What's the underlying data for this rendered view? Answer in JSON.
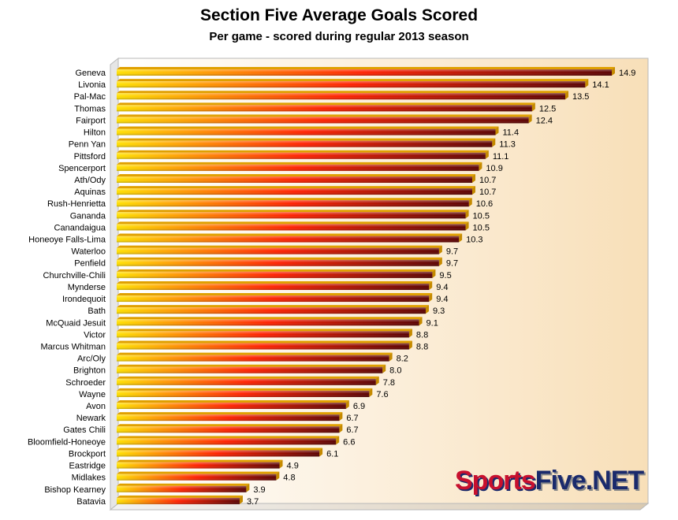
{
  "title": "Section Five Average Goals Scored",
  "subtitle": "Per game - scored during regular 2013 season",
  "logo": {
    "part1": "Sports",
    "part2": "Five.NET"
  },
  "colors": {
    "bar_start": "#ffe000",
    "bar_mid": "#ff2000",
    "bar_end": "#5a0000",
    "plot_bg_start": "#ffffff",
    "plot_bg_end": "#f8dfb8"
  },
  "chart_data": {
    "type": "bar",
    "orientation": "horizontal",
    "title": "Section Five Average Goals Scored",
    "subtitle": "Per game - scored during regular 2013 season",
    "xlim": [
      0,
      17
    ],
    "grid": false,
    "categories": [
      "Geneva",
      "Livonia",
      "Pal-Mac",
      "Thomas",
      "Fairport",
      "Hilton",
      "Penn Yan",
      "Pittsford",
      "Spencerport",
      "Ath/Ody",
      "Aquinas",
      "Rush-Henrietta",
      "Gananda",
      "Canandaigua",
      "Honeoye Falls-Lima",
      "Waterloo",
      "Penfield",
      "Churchville-Chili",
      "Mynderse",
      "Irondequoit",
      "Bath",
      "McQuaid Jesuit",
      "Victor",
      "Marcus Whitman",
      "Arc/Oly",
      "Brighton",
      "Schroeder",
      "Wayne",
      "Avon",
      "Newark",
      "Gates Chili",
      "Bloomfield-Honeoye",
      "Brockport",
      "Eastridge",
      "Midlakes",
      "Bishop Kearney",
      "Batavia"
    ],
    "values": [
      14.9,
      14.1,
      13.5,
      12.5,
      12.4,
      11.4,
      11.3,
      11.1,
      10.9,
      10.7,
      10.7,
      10.6,
      10.5,
      10.5,
      10.3,
      9.7,
      9.7,
      9.5,
      9.4,
      9.4,
      9.3,
      9.1,
      8.8,
      8.8,
      8.2,
      8.0,
      7.8,
      7.6,
      6.9,
      6.7,
      6.7,
      6.6,
      6.1,
      4.9,
      4.8,
      3.9,
      3.7
    ],
    "value_labels": [
      "14.9",
      "14.1",
      "13.5",
      "12.5",
      "12.4",
      "11.4",
      "11.3",
      "11.1",
      "10.9",
      "10.7",
      "10.7",
      "10.6",
      "10.5",
      "10.5",
      "10.3",
      "9.7",
      "9.7",
      "9.5",
      "9.4",
      "9.4",
      "9.3",
      "9.1",
      "8.8",
      "8.8",
      "8.2",
      "8.0",
      "7.8",
      "7.6",
      "6.9",
      "6.7",
      "6.7",
      "6.6",
      "6.1",
      "4.9",
      "4.8",
      "3.9",
      "3.7"
    ]
  }
}
